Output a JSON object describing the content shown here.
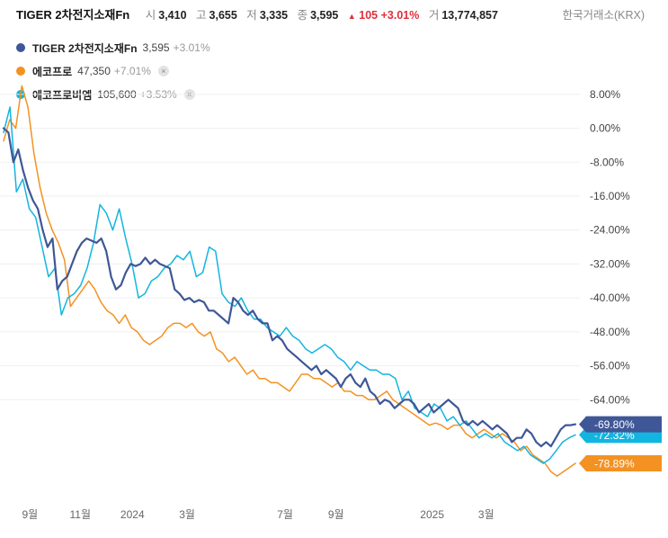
{
  "header": {
    "name": "TIGER 2차전지소재Fn",
    "open_label": "시",
    "open": "3,410",
    "high_label": "고",
    "high": "3,655",
    "low_label": "저",
    "low": "3,335",
    "close_label": "종",
    "close": "3,595",
    "change_arrow": "▲",
    "change": "105",
    "change_pct": "+3.01%",
    "volume_label": "거",
    "volume": "13,774,857",
    "exchange": "한국거래소(KRX)"
  },
  "legend": [
    {
      "name": "TIGER 2차전지소재Fn",
      "price": "3,595",
      "change": "+3.01%",
      "color": "#3f5796",
      "removable": false
    },
    {
      "name": "에코프로",
      "price": "47,350",
      "change": "+7.01%",
      "color": "#f39223",
      "removable": true
    },
    {
      "name": "에코프로비엠",
      "price": "105,600",
      "change": "+3.53%",
      "color": "#12b5e0",
      "removable": true
    }
  ],
  "close_icon": "×",
  "chart_data": {
    "type": "line",
    "y_unit": "%",
    "ylim": [
      -86,
      12
    ],
    "yticks": [
      "8.00%",
      "0.00%",
      "-8.00%",
      "-16.00%",
      "-24.00%",
      "-32.00%",
      "-40.00%",
      "-48.00%",
      "-56.00%",
      "-64.00%"
    ],
    "ytick_values": [
      8,
      0,
      -8,
      -16,
      -24,
      -32,
      -40,
      -48,
      -56,
      -64
    ],
    "xticks": [
      {
        "label": "9월",
        "t": 4.2
      },
      {
        "label": "11월",
        "t": 12.2
      },
      {
        "label": "2024",
        "t": 20.5
      },
      {
        "label": "3월",
        "t": 29.2
      },
      {
        "label": "7월",
        "t": 44.8
      },
      {
        "label": "9월",
        "t": 52.9
      },
      {
        "label": "2025",
        "t": 68.2
      },
      {
        "label": "3월",
        "t": 76.8
      }
    ],
    "xlim": [
      0,
      91
    ],
    "grid": true,
    "series": [
      {
        "name": "TIGER 2차전지소재Fn",
        "color": "#3f5796",
        "width": 2.2,
        "last_label": "-69.80%",
        "values": [
          0,
          -1,
          -8,
          -5,
          -10,
          -14,
          -17,
          -19,
          -24,
          -28,
          -26,
          -38,
          -36,
          -35,
          -32,
          -29,
          -27,
          -26,
          -26.5,
          -27,
          -26,
          -29,
          -35,
          -38,
          -37,
          -34,
          -32,
          -32.5,
          -32,
          -30.5,
          -32,
          -31,
          -32,
          -32.5,
          -33,
          -38,
          -39,
          -40.5,
          -40,
          -41,
          -40.5,
          -41,
          -43,
          -43,
          -44,
          -45,
          -46,
          -40,
          -41,
          -43,
          -44,
          -43,
          -45,
          -46,
          -46,
          -50,
          -49,
          -50,
          -52,
          -53,
          -54,
          -55,
          -56,
          -57,
          -56,
          -58,
          -57,
          -58,
          -59,
          -61,
          -59,
          -58,
          -60,
          -61,
          -59,
          -62,
          -63,
          -65,
          -64,
          -64.5,
          -66,
          -65,
          -64,
          -64,
          -65,
          -67,
          -66,
          -65,
          -67,
          -66,
          -65,
          -64,
          -65,
          -66,
          -69,
          -70,
          -69,
          -70,
          -69,
          -70,
          -71,
          -70,
          -71,
          -72,
          -74,
          -73,
          -73,
          -71,
          -72,
          -74,
          -75,
          -74,
          -75,
          -73,
          -71,
          -70,
          -70,
          -69.8
        ]
      },
      {
        "name": "에코프로",
        "color": "#f39223",
        "width": 1.5,
        "last_label": "-78.89%",
        "values": [
          -3,
          2,
          0,
          10,
          5,
          -6,
          -14,
          -20,
          -24,
          -27,
          -31,
          -42,
          -40,
          -38,
          -36,
          -38,
          -41,
          -43,
          -44,
          -46,
          -44,
          -47,
          -48,
          -50,
          -51,
          -50,
          -49,
          -47,
          -46,
          -46,
          -47,
          -46,
          -48,
          -49,
          -48,
          -52,
          -53,
          -55,
          -54,
          -56,
          -58,
          -57,
          -59,
          -59,
          -60,
          -60,
          -61,
          -62,
          -60,
          -58,
          -58,
          -59,
          -59,
          -60,
          -61,
          -60,
          -62,
          -62,
          -63,
          -63,
          -64,
          -64,
          -63,
          -62,
          -64,
          -65,
          -66,
          -67,
          -68,
          -69,
          -70,
          -69.5,
          -70,
          -71,
          -70,
          -70,
          -72,
          -73,
          -72,
          -71,
          -72,
          -73,
          -72,
          -73,
          -74,
          -76,
          -75,
          -77,
          -78,
          -79,
          -81,
          -82,
          -81,
          -80,
          -79
        ]
      },
      {
        "name": "에코프로비엠",
        "color": "#12b5e0",
        "width": 1.5,
        "last_label": "-72.32%",
        "values": [
          -1,
          5,
          -15,
          -12,
          -19,
          -21,
          -28,
          -35,
          -33,
          -44,
          -40,
          -39,
          -37,
          -33,
          -27,
          -18,
          -20,
          -24,
          -19,
          -26,
          -32,
          -40,
          -39,
          -36,
          -35,
          -33,
          -32,
          -30,
          -31,
          -29,
          -35,
          -34,
          -28,
          -29,
          -39,
          -41,
          -42,
          -40,
          -43,
          -45,
          -45,
          -47,
          -48,
          -49,
          -47,
          -49,
          -50,
          -52,
          -53,
          -52,
          -51,
          -52,
          -54,
          -55,
          -57,
          -55,
          -56,
          -57,
          -57,
          -58,
          -58,
          -59,
          -64,
          -62,
          -66,
          -67,
          -68,
          -65,
          -66,
          -69,
          -68,
          -70,
          -69,
          -71,
          -73,
          -72,
          -73,
          -72,
          -74,
          -75,
          -76,
          -75,
          -77,
          -78,
          -79,
          -78,
          -76,
          -74,
          -73,
          -72.3
        ]
      }
    ]
  }
}
